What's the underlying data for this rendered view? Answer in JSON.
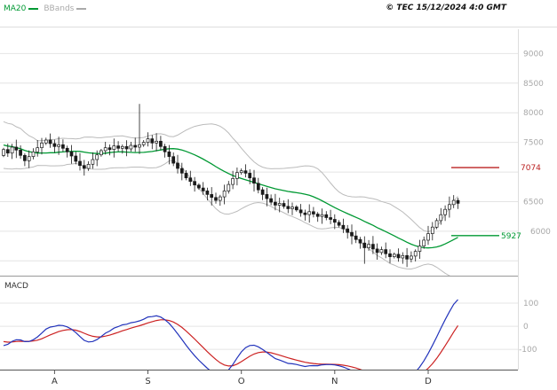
{
  "header": {
    "copyright": "© TEC 15/12/2024 4:0 GMT",
    "legend_ma20": {
      "label": "MA20",
      "color": "#009933"
    },
    "legend_bbands": {
      "label": "BBands",
      "color": "#aaaaaa"
    }
  },
  "labels": {
    "macd": "MACD"
  },
  "chart_data": {
    "type": "candlestick",
    "title": "",
    "x_axis": {
      "month_labels": [
        "A",
        "S",
        "O",
        "N",
        "D"
      ],
      "month_tick_indices": [
        12,
        34,
        56,
        78,
        100
      ]
    },
    "main_panel": {
      "y_ticks_labeled": [
        9000,
        8500,
        8000,
        7500,
        6500,
        6000
      ],
      "y_gridlines": [
        9000,
        8500,
        8000,
        7500,
        7000,
        6500,
        6000,
        5500
      ],
      "ymin": 5250,
      "ymax": 9410,
      "ma_period": 20,
      "bb_mult": 2,
      "level_lines": [
        {
          "name": "resistance-7074",
          "label": "7074",
          "value": 7074,
          "color": "#bb2222"
        },
        {
          "name": "support-5927",
          "label": "5927",
          "value": 5927,
          "color": "#009933"
        }
      ],
      "lead_in_closes": [
        7530,
        7680,
        7580,
        7730,
        7630,
        7780,
        7680,
        7580,
        7630,
        7480,
        7530,
        7380,
        7430,
        7280,
        7330,
        7180,
        7230,
        7130,
        7180,
        7280
      ],
      "closes": [
        7380,
        7320,
        7420,
        7370,
        7280,
        7190,
        7260,
        7340,
        7410,
        7490,
        7540,
        7480,
        7430,
        7460,
        7400,
        7340,
        7270,
        7180,
        7110,
        7060,
        7130,
        7210,
        7290,
        7360,
        7410,
        7380,
        7440,
        7400,
        7430,
        7390,
        7450,
        7420,
        7460,
        7500,
        7560,
        7490,
        7520,
        7430,
        7340,
        7260,
        7150,
        7060,
        6980,
        6900,
        6840,
        6780,
        6730,
        6680,
        6620,
        6570,
        6520,
        6580,
        6680,
        6790,
        6890,
        6990,
        7020,
        6980,
        6900,
        6810,
        6700,
        6620,
        6550,
        6490,
        6440,
        6470,
        6420,
        6380,
        6410,
        6360,
        6310,
        6280,
        6330,
        6290,
        6250,
        6280,
        6230,
        6200,
        6150,
        6100,
        6040,
        5980,
        5920,
        5860,
        5800,
        5720,
        5780,
        5700,
        5640,
        5690,
        5620,
        5570,
        5610,
        5550,
        5590,
        5530,
        5580,
        5660,
        5750,
        5850,
        5960,
        6070,
        6180,
        6280,
        6370,
        6450,
        6520,
        6470
      ],
      "high_overrides": {
        "32": 8150
      },
      "low_overrides": {
        "85": 5450
      }
    },
    "macd_panel": {
      "y_ticks": [
        100,
        0,
        -100
      ],
      "ymin": -188,
      "ymax": 200,
      "fast": 12,
      "slow": 26,
      "signal": 9,
      "colors": {
        "macd": "#2233bb",
        "signal": "#cc2222"
      }
    },
    "colors": {
      "grid": "#e4e4e4",
      "candle": "#1a1a1a",
      "ma20": "#009933",
      "bbands": "#bbbbbb",
      "axis_label": "#a8a8a8",
      "month_label": "#333333"
    }
  }
}
